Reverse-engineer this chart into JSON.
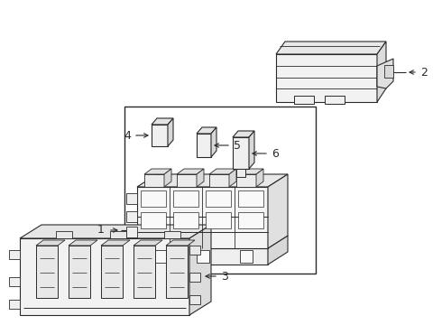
{
  "bg_color": "#ffffff",
  "line_color": "#2a2a2a",
  "fig_width": 4.9,
  "fig_height": 3.6,
  "dpi": 100,
  "lw": 0.8
}
